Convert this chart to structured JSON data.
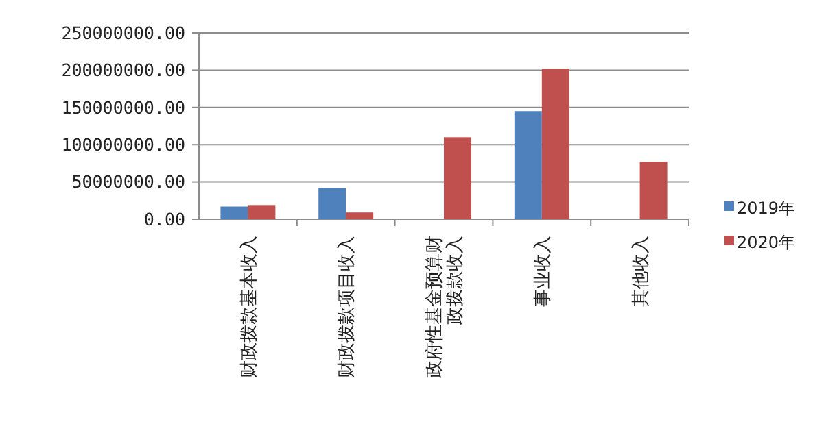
{
  "chart_data": {
    "type": "bar",
    "categories": [
      "财政拨款基本收入",
      "财政拨款项目收入",
      "政府性基金预算财政拨款收入",
      "事业收入",
      "其他收入"
    ],
    "series": [
      {
        "name": "2019年",
        "color": "#4f81bd",
        "values": [
          17000000,
          42000000,
          0,
          145000000,
          0
        ]
      },
      {
        "name": "2020年",
        "color": "#c0504d",
        "values": [
          19000000,
          9000000,
          110000000,
          202000000,
          77000000
        ]
      }
    ],
    "ylim": [
      0,
      250000000
    ],
    "yticks": [
      {
        "value": 0,
        "label": "0.00"
      },
      {
        "value": 50000000,
        "label": "50000000.00"
      },
      {
        "value": 100000000,
        "label": "100000000.00"
      },
      {
        "value": 150000000,
        "label": "150000000.00"
      },
      {
        "value": 200000000,
        "label": "200000000.00"
      },
      {
        "value": 250000000,
        "label": "250000000.00"
      }
    ],
    "grid": "y",
    "legend": "right"
  }
}
